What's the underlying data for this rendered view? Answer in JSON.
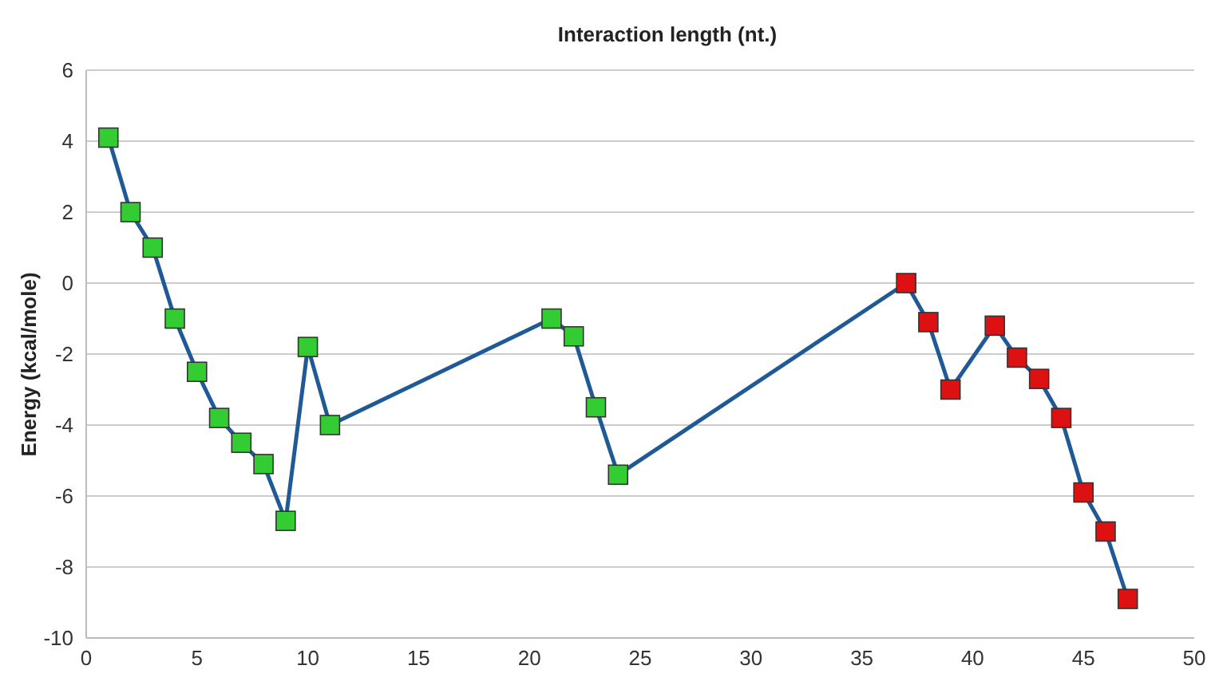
{
  "chart_data": {
    "type": "line",
    "title": "Interaction length (nt.)",
    "ylabel": "Energy (kcal/mole)",
    "x": [
      1,
      2,
      3,
      4,
      5,
      6,
      7,
      8,
      9,
      10,
      11,
      21,
      22,
      23,
      24,
      37,
      38,
      39,
      41,
      42,
      43,
      44,
      45,
      46,
      47
    ],
    "series": [
      {
        "color": "#1f5a96",
        "values": [
          4.1,
          2.0,
          1.0,
          -1.0,
          -2.5,
          -3.8,
          -4.5,
          -5.1,
          -6.7,
          -1.8,
          -4.0,
          -1.0,
          -1.5,
          -3.5,
          -5.4,
          0.0,
          -1.1,
          -3.0,
          -1.2,
          -2.1,
          -2.7,
          -3.8,
          -5.9,
          -7.0,
          -8.9
        ],
        "colors": [
          "#33cc33",
          "#33cc33",
          "#33cc33",
          "#33cc33",
          "#33cc33",
          "#33cc33",
          "#33cc33",
          "#33cc33",
          "#33cc33",
          "#33cc33",
          "#33cc33",
          "#33cc33",
          "#33cc33",
          "#33cc33",
          "#33cc33",
          "#dd1111",
          "#dd1111",
          "#dd1111",
          "#dd1111",
          "#dd1111",
          "#dd1111",
          "#dd1111",
          "#dd1111",
          "#dd1111",
          "#dd1111"
        ]
      }
    ],
    "xlim": [
      0,
      50
    ],
    "xticks": [
      0,
      5,
      10,
      15,
      20,
      25,
      30,
      35,
      40,
      45,
      50
    ],
    "ylim": [
      -10,
      6
    ],
    "yticks": [
      -10,
      -8,
      -6,
      -4,
      -2,
      0,
      2,
      4,
      6
    ],
    "grid": "y",
    "marker": "square",
    "line_style": "solid"
  }
}
